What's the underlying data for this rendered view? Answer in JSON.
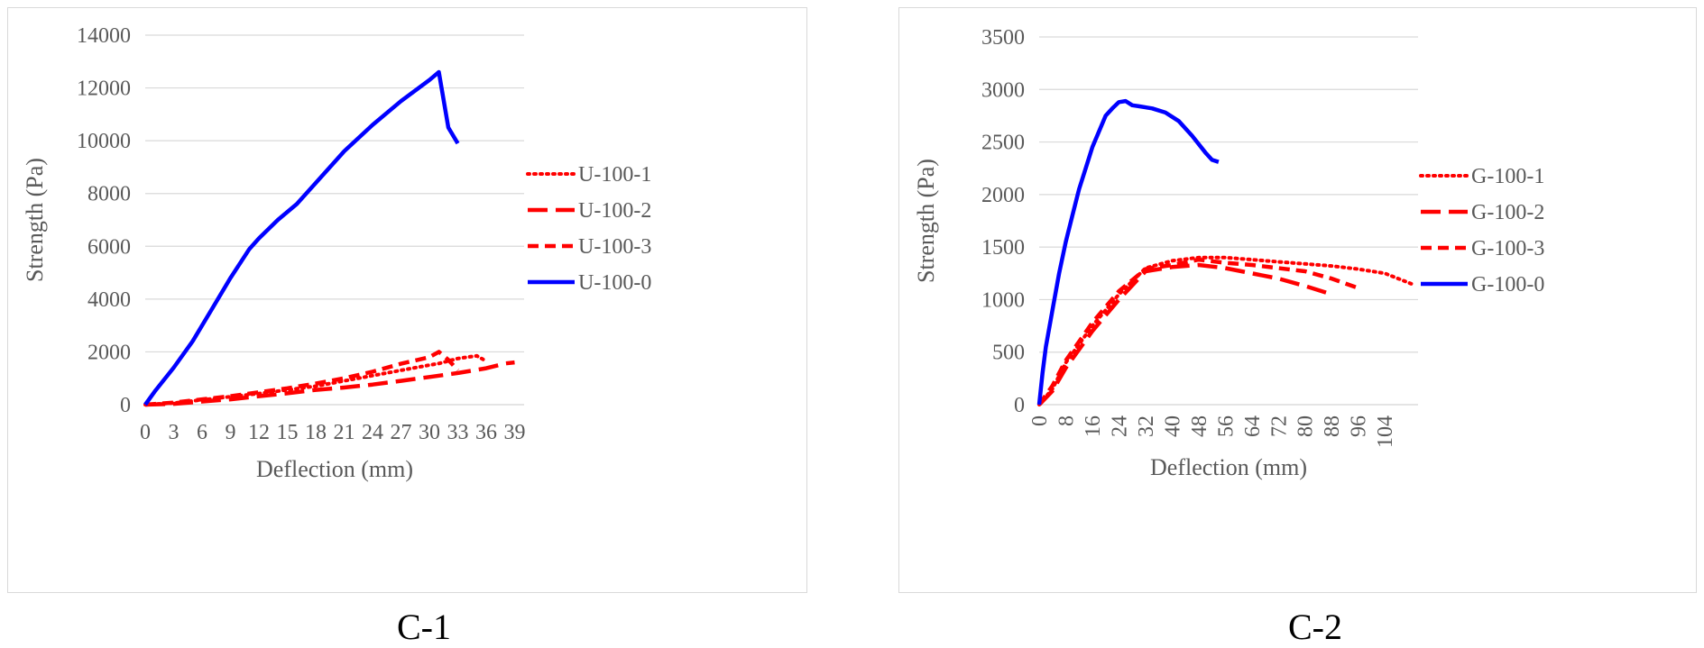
{
  "chart_data": [
    {
      "type": "line",
      "caption": "C-1",
      "xlabel": "Deflection (mm)",
      "ylabel": "Strength (Pa)",
      "xlim": [
        0,
        40
      ],
      "ylim": [
        0,
        14000
      ],
      "xticks": [
        "0",
        "3",
        "6",
        "9",
        "12",
        "15",
        "18",
        "21",
        "24",
        "27",
        "30",
        "33",
        "36",
        "39"
      ],
      "yticks": [
        "0",
        "2000",
        "4000",
        "6000",
        "8000",
        "10000",
        "12000",
        "14000"
      ],
      "grid": "horizontal",
      "legend_position": "right",
      "series": [
        {
          "name": "U-100-1",
          "color": "#ff0000",
          "dash": "dotted",
          "x": [
            0,
            3,
            6,
            9,
            12,
            15,
            18,
            21,
            24,
            27,
            30,
            31,
            33,
            35,
            36
          ],
          "y": [
            0,
            60,
            180,
            300,
            420,
            560,
            700,
            900,
            1100,
            1300,
            1500,
            1560,
            1750,
            1850,
            1650
          ]
        },
        {
          "name": "U-100-2",
          "color": "#ff0000",
          "dash": "long-dash",
          "x": [
            0,
            3,
            6,
            9,
            12,
            15,
            18,
            21,
            24,
            27,
            30,
            33,
            36,
            38,
            39
          ],
          "y": [
            0,
            30,
            120,
            200,
            320,
            430,
            560,
            650,
            760,
            900,
            1050,
            1200,
            1380,
            1560,
            1600
          ]
        },
        {
          "name": "U-100-3",
          "color": "#ff0000",
          "dash": "dash",
          "x": [
            0,
            3,
            6,
            9,
            12,
            15,
            18,
            21,
            24,
            27,
            30,
            31,
            32,
            33
          ],
          "y": [
            0,
            80,
            200,
            320,
            470,
            620,
            800,
            1000,
            1250,
            1550,
            1800,
            2000,
            1700,
            1300
          ]
        },
        {
          "name": "U-100-0",
          "color": "#0000ff",
          "dash": "solid",
          "x": [
            0,
            1,
            3,
            5,
            7,
            9,
            11,
            12,
            14,
            16,
            18,
            21,
            24,
            27,
            30,
            31,
            32,
            33
          ],
          "y": [
            0,
            500,
            1400,
            2400,
            3600,
            4800,
            5900,
            6300,
            7000,
            7600,
            8400,
            9600,
            10600,
            11500,
            12300,
            12600,
            10500,
            9900
          ]
        }
      ]
    },
    {
      "type": "line",
      "caption": "C-2",
      "xlabel": "Deflection (mm)",
      "ylabel": "Strength (Pa)",
      "xlim": [
        0,
        114
      ],
      "ylim": [
        0,
        3500
      ],
      "xticks": [
        "0",
        "8",
        "16",
        "24",
        "32",
        "40",
        "48",
        "56",
        "64",
        "72",
        "80",
        "88",
        "96",
        "104"
      ],
      "yticks": [
        "0",
        "500",
        "1000",
        "1500",
        "2000",
        "2500",
        "3000",
        "3500"
      ],
      "grid": "horizontal",
      "legend_position": "right",
      "series": [
        {
          "name": "G-100-1",
          "color": "#ff0000",
          "dash": "dotted",
          "x": [
            0,
            4,
            8,
            16,
            24,
            32,
            40,
            48,
            56,
            64,
            72,
            80,
            88,
            96,
            104,
            112
          ],
          "y": [
            0,
            150,
            400,
            750,
            1050,
            1300,
            1370,
            1400,
            1400,
            1380,
            1360,
            1340,
            1320,
            1290,
            1250,
            1150
          ]
        },
        {
          "name": "G-100-2",
          "color": "#ff0000",
          "dash": "long-dash",
          "x": [
            0,
            4,
            8,
            16,
            24,
            32,
            40,
            48,
            56,
            64,
            72,
            80,
            88
          ],
          "y": [
            0,
            130,
            350,
            700,
            1000,
            1270,
            1310,
            1330,
            1300,
            1250,
            1200,
            1130,
            1050
          ]
        },
        {
          "name": "G-100-3",
          "color": "#ff0000",
          "dash": "dash",
          "x": [
            0,
            4,
            8,
            16,
            24,
            32,
            40,
            48,
            56,
            64,
            72,
            80,
            88,
            96
          ],
          "y": [
            0,
            180,
            420,
            780,
            1080,
            1290,
            1330,
            1380,
            1350,
            1330,
            1300,
            1270,
            1200,
            1110
          ]
        },
        {
          "name": "G-100-0",
          "color": "#0000ff",
          "dash": "solid",
          "x": [
            0,
            1,
            2,
            4,
            6,
            8,
            10,
            12,
            14,
            16,
            18,
            20,
            22,
            24,
            26,
            28,
            30,
            34,
            38,
            42,
            46,
            50,
            52,
            54
          ],
          "y": [
            0,
            300,
            550,
            900,
            1250,
            1550,
            1800,
            2050,
            2250,
            2450,
            2600,
            2750,
            2820,
            2880,
            2890,
            2850,
            2840,
            2820,
            2780,
            2700,
            2560,
            2400,
            2330,
            2310
          ]
        }
      ]
    }
  ]
}
